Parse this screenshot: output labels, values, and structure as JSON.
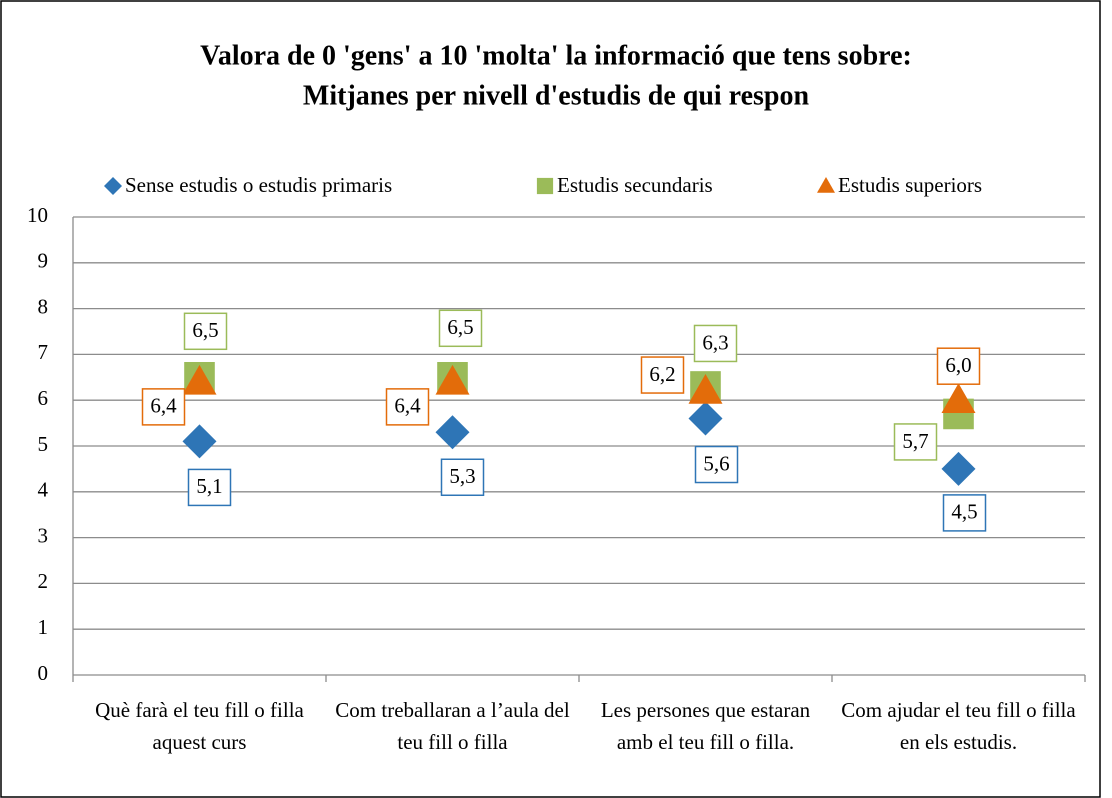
{
  "chart_data": {
    "type": "scatter",
    "title": [
      "Valora de 0 'gens' a 10 'molta' la informació que tens sobre:",
      "Mitjanes per nivell d'estudis de qui respon"
    ],
    "categories": [
      "Què farà el teu fill o filla aquest curs",
      "Com treballaran a l’aula del teu fill o filla",
      "Les persones que estaran amb el teu fill o filla.",
      "Com ajudar el teu fill o filla en els estudis."
    ],
    "series": [
      {
        "name": "Sense estudis o estudis primaris",
        "color": "#2e75b6",
        "marker": "diamond",
        "values": [
          5.1,
          5.3,
          5.6,
          4.5
        ],
        "value_labels": [
          "5,1",
          "5,3",
          "5,6",
          "4,5"
        ]
      },
      {
        "name": "Estudis secundaris",
        "color": "#9bbb59",
        "marker": "square",
        "values": [
          6.5,
          6.5,
          6.3,
          5.7
        ],
        "value_labels": [
          "6,5",
          "6,5",
          "6,3",
          "5,7"
        ]
      },
      {
        "name": "Estudis superiors",
        "color": "#e36c0a",
        "marker": "triangle",
        "values": [
          6.4,
          6.4,
          6.2,
          6.0
        ],
        "value_labels": [
          "6,4",
          "6,4",
          "6,2",
          "6,0"
        ]
      }
    ],
    "ylim": [
      0,
      10
    ],
    "yticks": [
      0,
      1,
      2,
      3,
      4,
      5,
      6,
      7,
      8,
      9,
      10
    ],
    "grid": true,
    "legend": "top"
  }
}
